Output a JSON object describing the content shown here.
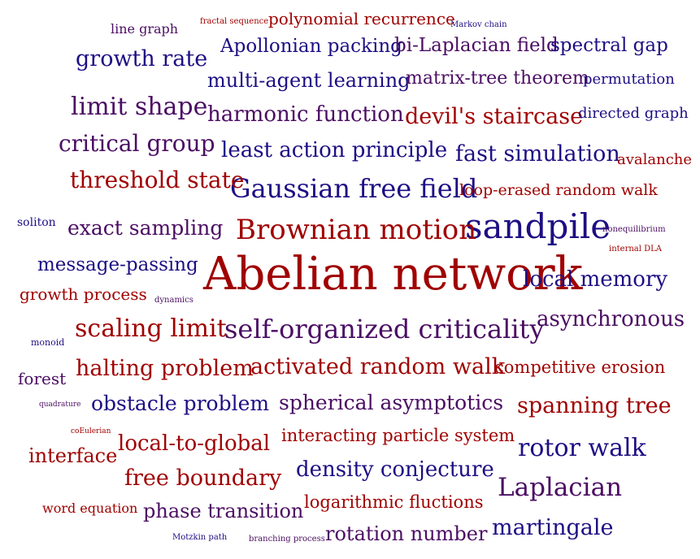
{
  "palette": {
    "red": "#a00000",
    "maroon": "#6a0d3a",
    "purple": "#4b0d63",
    "navy": "#1d0e84"
  },
  "words": [
    {
      "text": "Abelian network",
      "color": "red"
    },
    {
      "text": "sandpile",
      "color": "navy"
    },
    {
      "text": "Brownian motion",
      "color": "red"
    },
    {
      "text": "Gaussian free field",
      "color": "navy"
    },
    {
      "text": "self-organized criticality",
      "color": "purple"
    },
    {
      "text": "limit shape",
      "color": "purple"
    },
    {
      "text": "scaling limit",
      "color": "red"
    },
    {
      "text": "rotor walk",
      "color": "navy"
    },
    {
      "text": "Laplacian",
      "color": "purple"
    },
    {
      "text": "growth rate",
      "color": "navy"
    },
    {
      "text": "critical group",
      "color": "purple"
    },
    {
      "text": "threshold state",
      "color": "red"
    },
    {
      "text": "harmonic function",
      "color": "purple"
    },
    {
      "text": "devil's staircase",
      "color": "red"
    },
    {
      "text": "least action principle",
      "color": "navy"
    },
    {
      "text": "fast simulation",
      "color": "navy"
    },
    {
      "text": "local memory",
      "color": "navy"
    },
    {
      "text": "asynchronous",
      "color": "purple"
    },
    {
      "text": "spanning tree",
      "color": "red"
    },
    {
      "text": "martingale",
      "color": "navy"
    },
    {
      "text": "exact sampling",
      "color": "purple"
    },
    {
      "text": "halting problem",
      "color": "red"
    },
    {
      "text": "activated random walk",
      "color": "red"
    },
    {
      "text": "obstacle problem",
      "color": "navy"
    },
    {
      "text": "spherical asymptotics",
      "color": "purple"
    },
    {
      "text": "local-to-global",
      "color": "red"
    },
    {
      "text": "density conjecture",
      "color": "navy"
    },
    {
      "text": "free boundary",
      "color": "red"
    },
    {
      "text": "phase transition",
      "color": "purple"
    },
    {
      "text": "rotation number",
      "color": "purple"
    },
    {
      "text": "multi-agent learning",
      "color": "navy"
    },
    {
      "text": "Apollonian packing",
      "color": "navy"
    },
    {
      "text": "bi-Laplacian field",
      "color": "purple"
    },
    {
      "text": "spectral gap",
      "color": "navy"
    },
    {
      "text": "matrix-tree theorem",
      "color": "purple"
    },
    {
      "text": "message-passing",
      "color": "navy"
    },
    {
      "text": "polynomial recurrence",
      "color": "red"
    },
    {
      "text": "growth process",
      "color": "red"
    },
    {
      "text": "interface",
      "color": "red"
    },
    {
      "text": "interacting particle system",
      "color": "red"
    },
    {
      "text": "competitive erosion",
      "color": "red"
    },
    {
      "text": "logarithmic fluctions",
      "color": "red"
    },
    {
      "text": "loop-erased random walk",
      "color": "red"
    },
    {
      "text": "permutation",
      "color": "navy"
    },
    {
      "text": "directed graph",
      "color": "navy"
    },
    {
      "text": "avalanche",
      "color": "red"
    },
    {
      "text": "forest",
      "color": "purple"
    },
    {
      "text": "line graph",
      "color": "purple"
    },
    {
      "text": "word equation",
      "color": "red"
    },
    {
      "text": "soliton",
      "color": "navy"
    },
    {
      "text": "fractal sequence",
      "color": "red"
    },
    {
      "text": "Markov chain",
      "color": "navy"
    },
    {
      "text": "nonequilibrium",
      "color": "purple"
    },
    {
      "text": "internal DLA",
      "color": "red"
    },
    {
      "text": "dynamics",
      "color": "purple"
    },
    {
      "text": "monoid",
      "color": "navy"
    },
    {
      "text": "quadrature",
      "color": "purple"
    },
    {
      "text": "coEulerian",
      "color": "red"
    },
    {
      "text": "Motzkin path",
      "color": "navy"
    },
    {
      "text": "branching process",
      "color": "purple"
    }
  ]
}
